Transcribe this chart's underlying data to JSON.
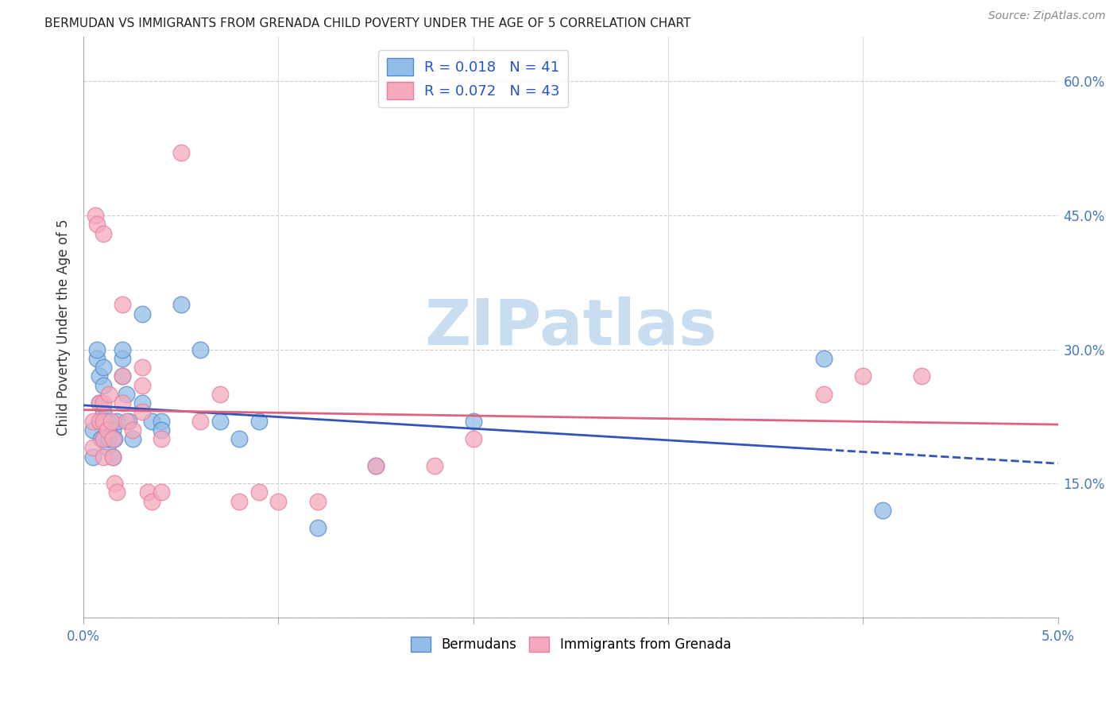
{
  "title": "BERMUDAN VS IMMIGRANTS FROM GRENADA CHILD POVERTY UNDER THE AGE OF 5 CORRELATION CHART",
  "source": "Source: ZipAtlas.com",
  "ylabel": "Child Poverty Under the Age of 5",
  "xlim": [
    0.0,
    0.05
  ],
  "ylim": [
    0.0,
    0.65
  ],
  "x_tick_positions": [
    0.0,
    0.01,
    0.02,
    0.03,
    0.04,
    0.05
  ],
  "x_tick_labels_show": {
    "0.0": "0.0%",
    "0.05": "5.0%"
  },
  "y_ticks": [
    0.0,
    0.15,
    0.3,
    0.45,
    0.6
  ],
  "right_y_tick_labels": [
    "15.0%",
    "30.0%",
    "45.0%",
    "60.0%"
  ],
  "right_y_tick_values": [
    0.15,
    0.3,
    0.45,
    0.6
  ],
  "legend_blue_label": "R = 0.018   N = 41",
  "legend_pink_label": "R = 0.072   N = 43",
  "legend_bottom_blue": "Bermudans",
  "legend_bottom_pink": "Immigrants from Grenada",
  "blue_scatter_color": "#92BDE8",
  "pink_scatter_color": "#F4AABC",
  "blue_edge_color": "#5588CC",
  "pink_edge_color": "#E87DA0",
  "blue_line_color": "#3355BB",
  "pink_line_color": "#E06080",
  "watermark_text": "ZIPatlas",
  "watermark_color": "#C8DEF0",
  "blue_x": [
    0.0005,
    0.0005,
    0.0007,
    0.0007,
    0.0008,
    0.0008,
    0.0009,
    0.0009,
    0.001,
    0.001,
    0.001,
    0.001,
    0.0012,
    0.0012,
    0.0013,
    0.0013,
    0.0015,
    0.0015,
    0.0016,
    0.0017,
    0.002,
    0.002,
    0.002,
    0.0022,
    0.0023,
    0.0025,
    0.003,
    0.003,
    0.0035,
    0.004,
    0.004,
    0.005,
    0.006,
    0.007,
    0.008,
    0.009,
    0.012,
    0.015,
    0.02,
    0.038,
    0.041
  ],
  "blue_y": [
    0.21,
    0.18,
    0.29,
    0.3,
    0.27,
    0.24,
    0.22,
    0.2,
    0.28,
    0.26,
    0.23,
    0.2,
    0.22,
    0.19,
    0.21,
    0.2,
    0.21,
    0.18,
    0.2,
    0.22,
    0.29,
    0.3,
    0.27,
    0.25,
    0.22,
    0.2,
    0.34,
    0.24,
    0.22,
    0.22,
    0.21,
    0.35,
    0.3,
    0.22,
    0.2,
    0.22,
    0.1,
    0.17,
    0.22,
    0.29,
    0.12
  ],
  "pink_x": [
    0.0005,
    0.0005,
    0.0006,
    0.0007,
    0.0008,
    0.0008,
    0.001,
    0.001,
    0.001,
    0.001,
    0.001,
    0.0012,
    0.0013,
    0.0014,
    0.0015,
    0.0015,
    0.0016,
    0.0017,
    0.002,
    0.002,
    0.002,
    0.0022,
    0.0025,
    0.003,
    0.003,
    0.003,
    0.0033,
    0.0035,
    0.004,
    0.004,
    0.005,
    0.006,
    0.007,
    0.008,
    0.009,
    0.01,
    0.012,
    0.015,
    0.018,
    0.02,
    0.038,
    0.04,
    0.043
  ],
  "pink_y": [
    0.22,
    0.19,
    0.45,
    0.44,
    0.24,
    0.22,
    0.43,
    0.24,
    0.22,
    0.2,
    0.18,
    0.21,
    0.25,
    0.22,
    0.2,
    0.18,
    0.15,
    0.14,
    0.35,
    0.27,
    0.24,
    0.22,
    0.21,
    0.28,
    0.26,
    0.23,
    0.14,
    0.13,
    0.2,
    0.14,
    0.52,
    0.22,
    0.25,
    0.13,
    0.14,
    0.13,
    0.13,
    0.17,
    0.17,
    0.2,
    0.25,
    0.27,
    0.27
  ],
  "background_color": "#ffffff",
  "grid_color": "#cccccc"
}
